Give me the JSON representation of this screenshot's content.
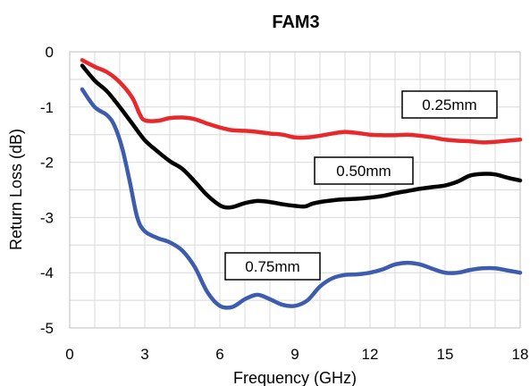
{
  "chart_data": {
    "type": "line",
    "title": "FAM3",
    "xlabel": "Frequency (GHz)",
    "ylabel": "Return Loss (dB)",
    "xlim": [
      0,
      18
    ],
    "ylim": [
      -5,
      0
    ],
    "xticks": [
      0,
      3,
      6,
      9,
      12,
      15,
      18
    ],
    "yticks": [
      0,
      -1,
      -2,
      -3,
      -4,
      -5
    ],
    "xtick_labels": [
      "0",
      "3",
      "6",
      "9",
      "12",
      "15",
      "18"
    ],
    "ytick_labels": [
      "0",
      "-1",
      "-2",
      "-3",
      "-4",
      "-5"
    ],
    "grid": true,
    "series": [
      {
        "name": "0.25mm",
        "color": "#e8292b",
        "points": [
          [
            0.5,
            -0.15
          ],
          [
            1.0,
            -0.27
          ],
          [
            1.5,
            -0.37
          ],
          [
            2.0,
            -0.55
          ],
          [
            2.5,
            -0.83
          ],
          [
            2.8,
            -1.13
          ],
          [
            3.0,
            -1.24
          ],
          [
            3.5,
            -1.25
          ],
          [
            4.0,
            -1.2
          ],
          [
            4.5,
            -1.19
          ],
          [
            5.0,
            -1.22
          ],
          [
            5.5,
            -1.3
          ],
          [
            6.0,
            -1.37
          ],
          [
            6.5,
            -1.42
          ],
          [
            7.0,
            -1.43
          ],
          [
            7.5,
            -1.45
          ],
          [
            8.0,
            -1.48
          ],
          [
            8.5,
            -1.5
          ],
          [
            9.0,
            -1.55
          ],
          [
            9.5,
            -1.55
          ],
          [
            10.0,
            -1.52
          ],
          [
            10.5,
            -1.48
          ],
          [
            11.0,
            -1.45
          ],
          [
            11.5,
            -1.47
          ],
          [
            12.0,
            -1.5
          ],
          [
            12.5,
            -1.51
          ],
          [
            13.0,
            -1.51
          ],
          [
            13.5,
            -1.5
          ],
          [
            14.0,
            -1.52
          ],
          [
            14.5,
            -1.55
          ],
          [
            15.0,
            -1.59
          ],
          [
            15.5,
            -1.61
          ],
          [
            16.0,
            -1.62
          ],
          [
            16.5,
            -1.64
          ],
          [
            17.0,
            -1.63
          ],
          [
            17.5,
            -1.61
          ],
          [
            18.0,
            -1.59
          ]
        ]
      },
      {
        "name": "0.50mm",
        "color": "#000000",
        "points": [
          [
            0.5,
            -0.25
          ],
          [
            1.0,
            -0.52
          ],
          [
            1.5,
            -0.72
          ],
          [
            2.0,
            -1.0
          ],
          [
            2.5,
            -1.3
          ],
          [
            3.0,
            -1.6
          ],
          [
            3.5,
            -1.8
          ],
          [
            4.0,
            -1.98
          ],
          [
            4.5,
            -2.12
          ],
          [
            5.0,
            -2.35
          ],
          [
            5.5,
            -2.6
          ],
          [
            6.0,
            -2.78
          ],
          [
            6.3,
            -2.82
          ],
          [
            6.6,
            -2.8
          ],
          [
            7.0,
            -2.74
          ],
          [
            7.5,
            -2.7
          ],
          [
            8.0,
            -2.72
          ],
          [
            8.5,
            -2.76
          ],
          [
            9.0,
            -2.79
          ],
          [
            9.4,
            -2.8
          ],
          [
            9.7,
            -2.75
          ],
          [
            10.0,
            -2.72
          ],
          [
            10.5,
            -2.69
          ],
          [
            11.0,
            -2.67
          ],
          [
            11.5,
            -2.66
          ],
          [
            12.0,
            -2.64
          ],
          [
            12.5,
            -2.61
          ],
          [
            13.0,
            -2.56
          ],
          [
            13.5,
            -2.52
          ],
          [
            14.0,
            -2.48
          ],
          [
            14.5,
            -2.45
          ],
          [
            15.0,
            -2.42
          ],
          [
            15.5,
            -2.35
          ],
          [
            16.0,
            -2.24
          ],
          [
            16.5,
            -2.21
          ],
          [
            17.0,
            -2.22
          ],
          [
            17.5,
            -2.28
          ],
          [
            18.0,
            -2.33
          ]
        ]
      },
      {
        "name": "0.75mm",
        "color": "#3d5cae",
        "points": [
          [
            0.5,
            -0.68
          ],
          [
            1.0,
            -1.0
          ],
          [
            1.5,
            -1.15
          ],
          [
            1.8,
            -1.35
          ],
          [
            2.1,
            -1.75
          ],
          [
            2.4,
            -2.35
          ],
          [
            2.7,
            -3.0
          ],
          [
            3.0,
            -3.25
          ],
          [
            3.5,
            -3.37
          ],
          [
            4.0,
            -3.45
          ],
          [
            4.5,
            -3.6
          ],
          [
            5.0,
            -3.9
          ],
          [
            5.5,
            -4.35
          ],
          [
            6.0,
            -4.6
          ],
          [
            6.5,
            -4.62
          ],
          [
            7.0,
            -4.48
          ],
          [
            7.5,
            -4.4
          ],
          [
            8.0,
            -4.48
          ],
          [
            8.5,
            -4.58
          ],
          [
            9.0,
            -4.6
          ],
          [
            9.5,
            -4.5
          ],
          [
            10.0,
            -4.25
          ],
          [
            10.5,
            -4.1
          ],
          [
            11.0,
            -4.04
          ],
          [
            11.5,
            -4.03
          ],
          [
            12.0,
            -4.0
          ],
          [
            12.5,
            -3.94
          ],
          [
            13.0,
            -3.85
          ],
          [
            13.5,
            -3.82
          ],
          [
            14.0,
            -3.85
          ],
          [
            14.5,
            -3.93
          ],
          [
            15.0,
            -4.0
          ],
          [
            15.5,
            -4.0
          ],
          [
            16.0,
            -3.95
          ],
          [
            16.5,
            -3.92
          ],
          [
            17.0,
            -3.92
          ],
          [
            17.5,
            -3.96
          ],
          [
            18.0,
            -4.0
          ]
        ]
      }
    ]
  }
}
